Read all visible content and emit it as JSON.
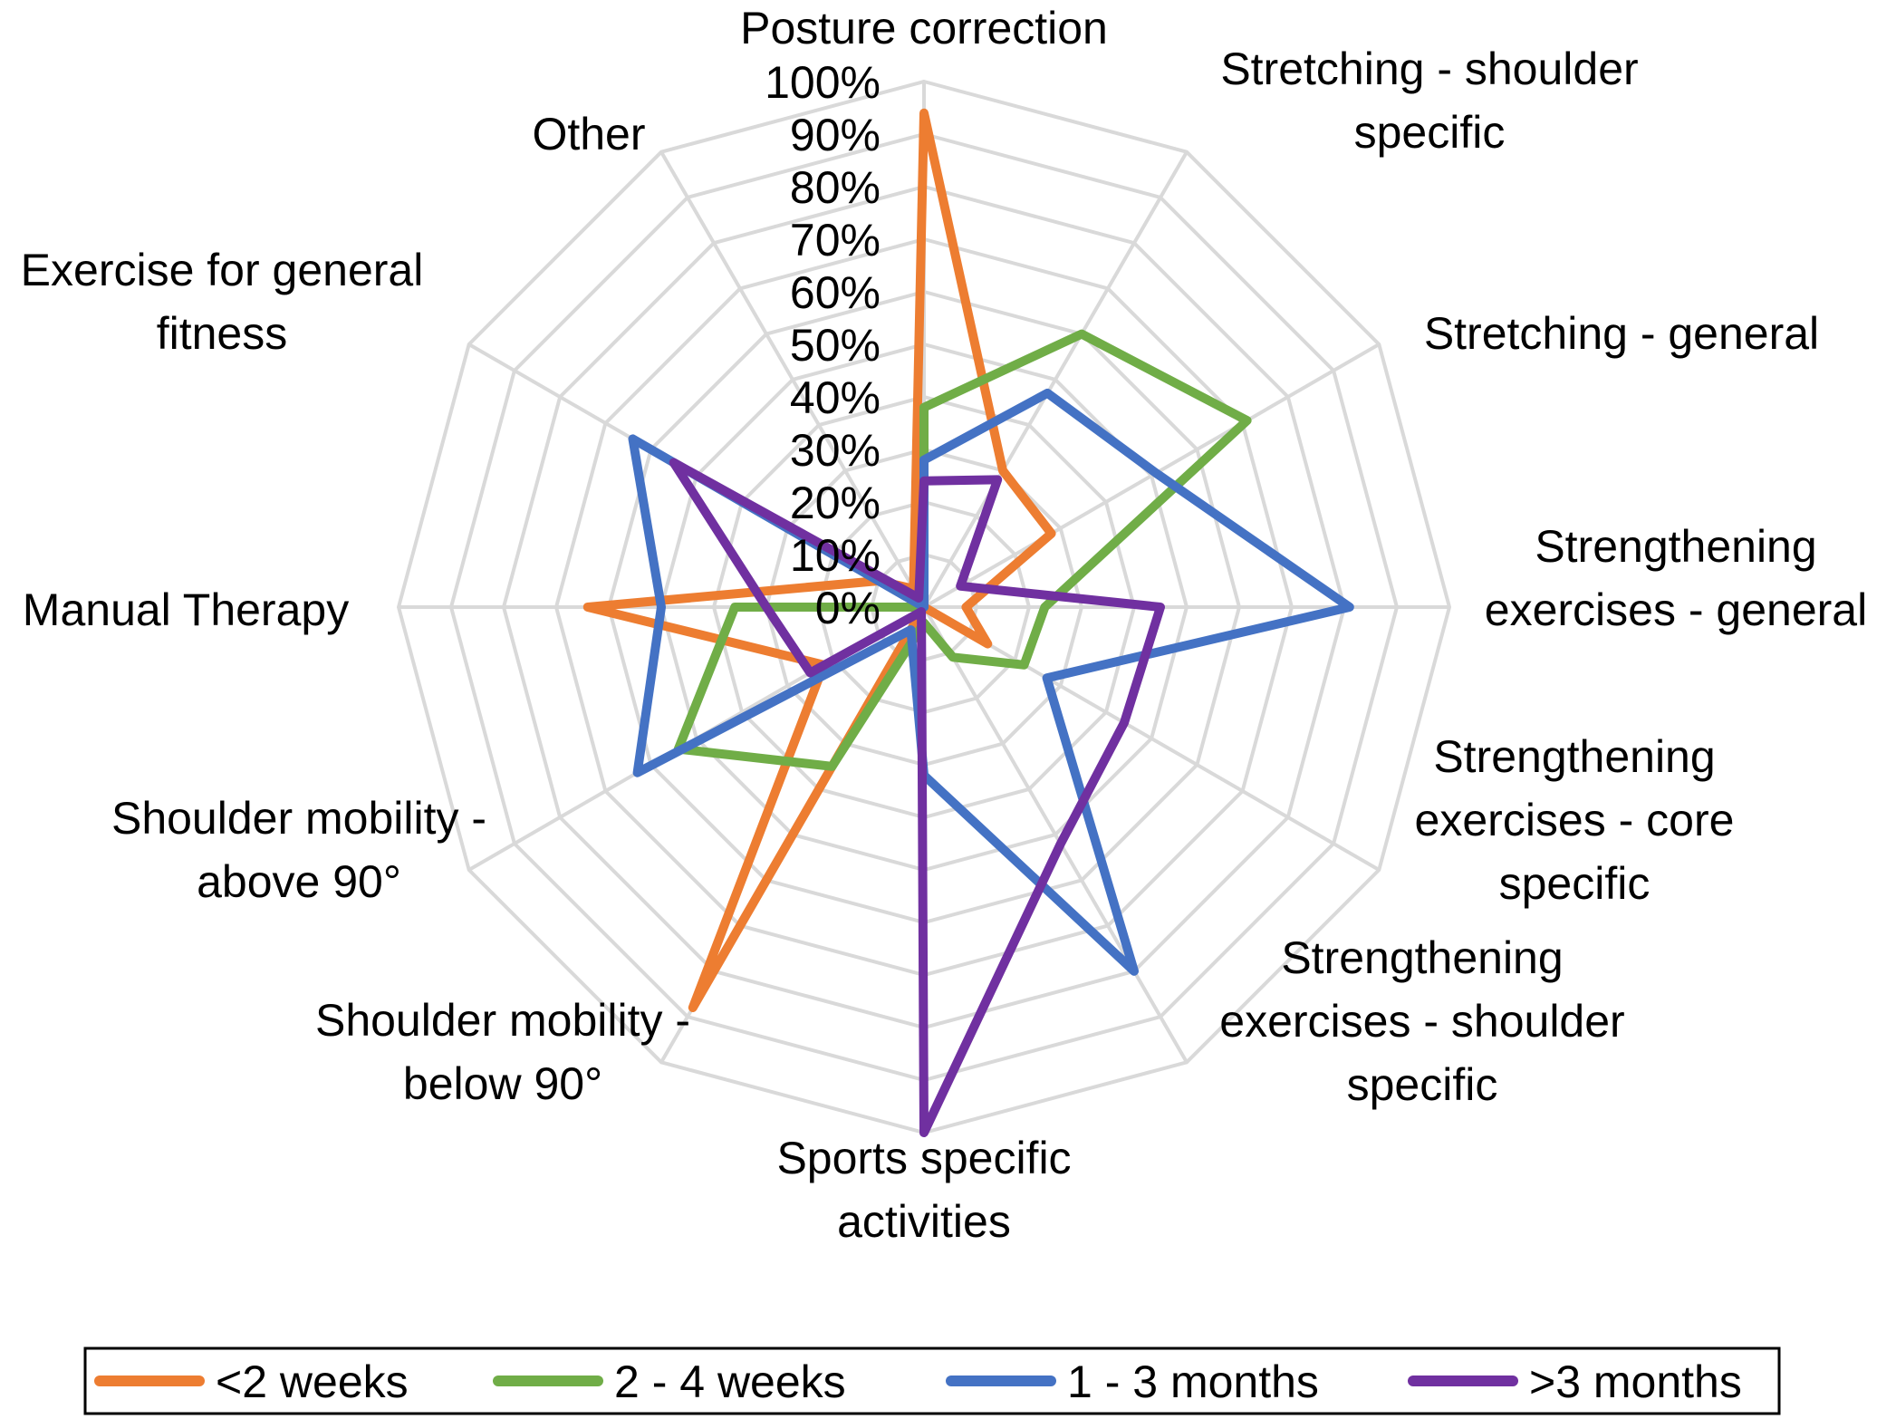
{
  "chart_data": {
    "type": "radar",
    "title": "",
    "categories": [
      "Posture correction",
      "Stretching - shoulder specific",
      "Stretching - general",
      "Strengthening exercises - general",
      "Strengthening exercises - core specific",
      "Strengthening exercises - shoulder specific",
      "Sports specific activities",
      "Shoulder mobility - below 90°",
      "Shoulder mobility - above 90°",
      "Manual Therapy",
      "Exercise for general fitness",
      "Other"
    ],
    "category_label_lines": [
      [
        "Posture correction"
      ],
      [
        "Stretching - shoulder",
        "specific"
      ],
      [
        "Stretching - general"
      ],
      [
        "Strengthening",
        "exercises - general"
      ],
      [
        "Strengthening",
        "exercises - core",
        "specific"
      ],
      [
        "Strengthening",
        "exercises - shoulder",
        "specific"
      ],
      [
        "Sports specific",
        "activities"
      ],
      [
        "Shoulder mobility -",
        "below 90°"
      ],
      [
        "Shoulder mobility -",
        "above 90°"
      ],
      [
        "Manual Therapy"
      ],
      [
        "Exercise for general",
        "fitness"
      ],
      [
        "Other"
      ]
    ],
    "radial_ticks": [
      "0%",
      "10%",
      "20%",
      "30%",
      "40%",
      "50%",
      "60%",
      "70%",
      "80%",
      "90%",
      "100%"
    ],
    "rmin": 0,
    "rmax": 100,
    "series": [
      {
        "name": "<2 weeks",
        "color": "#ed7d31",
        "values": [
          94,
          30,
          28,
          8,
          14,
          0,
          0,
          88,
          22,
          64,
          10,
          4
        ]
      },
      {
        "name": "2 - 4 weeks",
        "color": "#70ad47",
        "values": [
          38,
          60,
          71,
          23,
          22,
          11,
          3,
          35,
          54,
          36,
          0,
          0
        ]
      },
      {
        "name": "1 - 3 months",
        "color": "#4472c4",
        "values": [
          28,
          47,
          51,
          81,
          27,
          80,
          32,
          5,
          63,
          50,
          64,
          0
        ]
      },
      {
        "name": ">3 months",
        "color": "#7030a0",
        "values": [
          24,
          28,
          8,
          45,
          44,
          52,
          100,
          1,
          25,
          30,
          55,
          2
        ]
      }
    ],
    "legend": {
      "position": "bottom",
      "items": [
        "<2 weeks",
        "2 - 4 weeks",
        "1 - 3 months",
        ">3 months"
      ]
    }
  }
}
